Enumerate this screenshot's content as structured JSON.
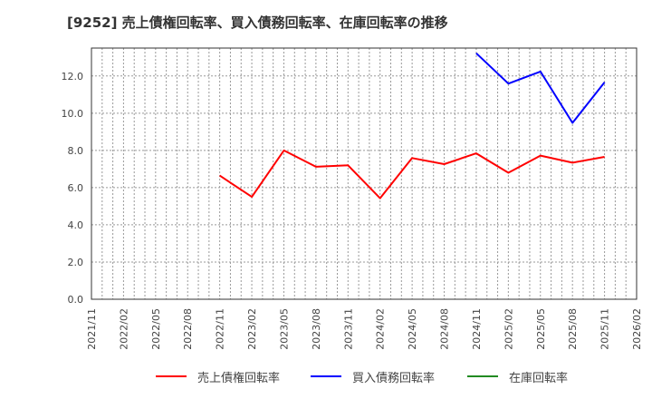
{
  "title": "[9252]  売上債権回転率、買入債務回転率、在庫回転率の推移",
  "chart_data": {
    "type": "line",
    "title": "[9252]  売上債権回転率、買入債務回転率、在庫回転率の推移",
    "xlabel": "",
    "ylabel": "",
    "ylim": [
      0,
      13.5
    ],
    "yticks": [
      0.0,
      2.0,
      4.0,
      6.0,
      8.0,
      10.0,
      12.0
    ],
    "ytick_labels": [
      "0.0",
      "2.0",
      "4.0",
      "6.0",
      "8.0",
      "10.0",
      "12.0"
    ],
    "grid": true,
    "legend_position": "bottom",
    "categories": [
      "2021/11",
      "2022/02",
      "2022/05",
      "2022/08",
      "2022/11",
      "2023/02",
      "2023/05",
      "2023/08",
      "2023/11",
      "2024/02",
      "2024/05",
      "2024/08",
      "2024/11",
      "2025/02",
      "2025/05",
      "2025/08",
      "2025/11",
      "2026/02"
    ],
    "series": [
      {
        "name": "売上債権回転率",
        "color": "#ff0000",
        "values": [
          null,
          null,
          null,
          null,
          6.65,
          5.5,
          8.0,
          7.12,
          7.2,
          5.43,
          7.59,
          7.26,
          7.84,
          6.8,
          7.72,
          7.34,
          7.65,
          null
        ]
      },
      {
        "name": "買入債務回転率",
        "color": "#0000ff",
        "values": [
          null,
          null,
          null,
          null,
          null,
          null,
          null,
          null,
          null,
          null,
          null,
          null,
          13.22,
          11.59,
          12.24,
          9.48,
          11.66,
          null
        ]
      },
      {
        "name": "在庫回転率",
        "color": "#228b22",
        "values": [
          null,
          null,
          null,
          null,
          null,
          null,
          null,
          null,
          null,
          null,
          null,
          null,
          null,
          null,
          null,
          null,
          null,
          null
        ]
      }
    ]
  },
  "legend": [
    {
      "label": "売上債権回転率",
      "color": "#ff0000"
    },
    {
      "label": "買入債務回転率",
      "color": "#0000ff"
    },
    {
      "label": "在庫回転率",
      "color": "#228b22"
    }
  ]
}
